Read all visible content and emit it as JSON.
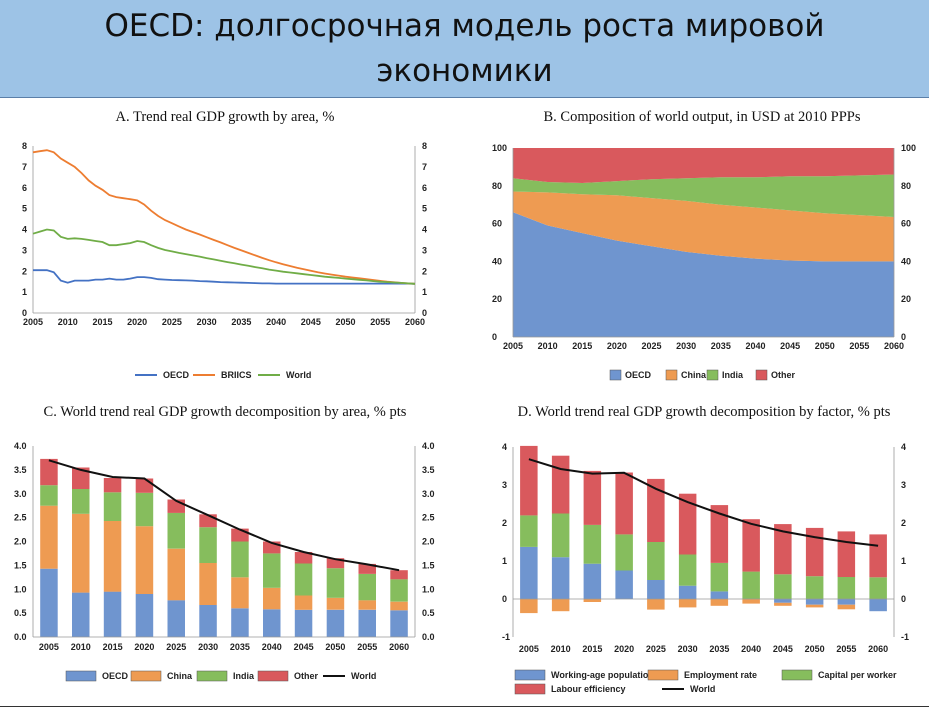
{
  "header": {
    "title": "OECD: долгосрочная модель роста мировой экономики"
  },
  "colors": {
    "banner": "#9dc3e6",
    "blue": "#4472c4",
    "orange": "#ed7d31",
    "green": "#70ad47",
    "bar_blue": "#6f95cf",
    "bar_orange": "#ee9b52",
    "bar_green": "#86bd5d",
    "bar_red": "#d9595d",
    "world_line": "#111111"
  },
  "chart_data": [
    {
      "id": "A",
      "type": "line",
      "title": "A. Trend real GDP growth by area, %",
      "x": [
        2005,
        2006,
        2007,
        2008,
        2009,
        2010,
        2011,
        2012,
        2013,
        2014,
        2015,
        2016,
        2017,
        2018,
        2019,
        2020,
        2021,
        2022,
        2023,
        2024,
        2025,
        2026,
        2027,
        2028,
        2029,
        2030,
        2031,
        2032,
        2033,
        2034,
        2035,
        2036,
        2037,
        2038,
        2039,
        2040,
        2041,
        2042,
        2043,
        2044,
        2045,
        2046,
        2047,
        2048,
        2049,
        2050,
        2051,
        2052,
        2053,
        2054,
        2055,
        2056,
        2057,
        2058,
        2059,
        2060
      ],
      "series": [
        {
          "name": "OECD",
          "color": "#4472c4",
          "values": [
            2.05,
            2.05,
            2.05,
            1.95,
            1.55,
            1.45,
            1.55,
            1.55,
            1.55,
            1.6,
            1.6,
            1.65,
            1.6,
            1.6,
            1.65,
            1.72,
            1.72,
            1.68,
            1.62,
            1.6,
            1.58,
            1.57,
            1.56,
            1.55,
            1.53,
            1.52,
            1.5,
            1.48,
            1.47,
            1.46,
            1.45,
            1.44,
            1.43,
            1.42,
            1.42,
            1.41,
            1.41,
            1.41,
            1.41,
            1.41,
            1.41,
            1.41,
            1.41,
            1.41,
            1.41,
            1.41,
            1.41,
            1.41,
            1.41,
            1.41,
            1.41,
            1.41,
            1.41,
            1.41,
            1.41,
            1.4
          ]
        },
        {
          "name": "BRIICS",
          "color": "#ed7d31",
          "values": [
            7.7,
            7.75,
            7.8,
            7.7,
            7.4,
            7.2,
            7.0,
            6.7,
            6.35,
            6.1,
            5.9,
            5.65,
            5.55,
            5.5,
            5.45,
            5.4,
            5.2,
            4.9,
            4.65,
            4.45,
            4.3,
            4.15,
            4.0,
            3.88,
            3.76,
            3.63,
            3.5,
            3.38,
            3.25,
            3.12,
            3.0,
            2.88,
            2.76,
            2.64,
            2.53,
            2.43,
            2.34,
            2.25,
            2.17,
            2.1,
            2.02,
            1.95,
            1.89,
            1.84,
            1.79,
            1.74,
            1.7,
            1.66,
            1.62,
            1.58,
            1.54,
            1.5,
            1.47,
            1.44,
            1.42,
            1.4
          ]
        },
        {
          "name": "World",
          "color": "#70ad47",
          "values": [
            3.8,
            3.9,
            4.0,
            3.95,
            3.65,
            3.55,
            3.58,
            3.55,
            3.5,
            3.45,
            3.4,
            3.25,
            3.25,
            3.3,
            3.35,
            3.45,
            3.4,
            3.25,
            3.12,
            3.02,
            2.95,
            2.88,
            2.82,
            2.76,
            2.7,
            2.63,
            2.57,
            2.5,
            2.44,
            2.38,
            2.32,
            2.26,
            2.2,
            2.14,
            2.08,
            2.03,
            1.98,
            1.94,
            1.9,
            1.86,
            1.82,
            1.78,
            1.74,
            1.71,
            1.68,
            1.65,
            1.62,
            1.59,
            1.56,
            1.53,
            1.5,
            1.48,
            1.46,
            1.44,
            1.42,
            1.4
          ]
        }
      ],
      "xticks": [
        2005,
        2010,
        2015,
        2020,
        2025,
        2030,
        2035,
        2040,
        2045,
        2050,
        2055,
        2060
      ],
      "yticks": [
        0,
        1,
        2,
        3,
        4,
        5,
        6,
        7,
        8
      ],
      "ylim": [
        0,
        8
      ],
      "grid": false,
      "legend": "bottom"
    },
    {
      "id": "B",
      "type": "area",
      "stacked": true,
      "title": "B. Composition of world output, in USD at 2010 PPPs",
      "x": [
        2005,
        2010,
        2015,
        2020,
        2025,
        2030,
        2035,
        2040,
        2045,
        2050,
        2055,
        2060
      ],
      "series": [
        {
          "name": "OECD",
          "color": "#6f95cf",
          "values": [
            66,
            59,
            55,
            51,
            48,
            45,
            43,
            41.5,
            40.5,
            40,
            40,
            40
          ]
        },
        {
          "name": "China",
          "color": "#ee9b52",
          "values": [
            11,
            17.5,
            20.5,
            24,
            25.5,
            27,
            27,
            27,
            26.5,
            25.5,
            24.5,
            23.5
          ]
        },
        {
          "name": "India",
          "color": "#86bd5d",
          "values": [
            7,
            5.5,
            6,
            7.5,
            10,
            12,
            14.5,
            16,
            18,
            19.5,
            21,
            22.5
          ]
        },
        {
          "name": "Other",
          "color": "#d9595d",
          "values": [
            16,
            18,
            18.5,
            17.5,
            16.5,
            16,
            15.5,
            15.5,
            15,
            15,
            14.5,
            14
          ]
        }
      ],
      "xticks": [
        2005,
        2010,
        2015,
        2020,
        2025,
        2030,
        2035,
        2040,
        2045,
        2050,
        2055,
        2060
      ],
      "yticks": [
        0,
        20,
        40,
        60,
        80,
        100
      ],
      "ylim": [
        0,
        100
      ],
      "grid": false,
      "legend": "bottom"
    },
    {
      "id": "C",
      "type": "bar",
      "stacked": true,
      "title": "C. World trend real GDP growth decomposition by area, % pts",
      "categories": [
        "2005",
        "2010",
        "2015",
        "2020",
        "2025",
        "2030",
        "2035",
        "2040",
        "2045",
        "2050",
        "2055",
        "2060"
      ],
      "series": [
        {
          "name": "OECD",
          "color": "#6f95cf",
          "values": [
            1.43,
            0.93,
            0.95,
            0.9,
            0.77,
            0.67,
            0.6,
            0.58,
            0.57,
            0.57,
            0.57,
            0.56
          ]
        },
        {
          "name": "China",
          "color": "#ee9b52",
          "values": [
            1.32,
            1.65,
            1.48,
            1.42,
            1.08,
            0.88,
            0.65,
            0.45,
            0.3,
            0.25,
            0.2,
            0.18
          ]
        },
        {
          "name": "India",
          "color": "#86bd5d",
          "values": [
            0.43,
            0.52,
            0.6,
            0.7,
            0.75,
            0.75,
            0.75,
            0.72,
            0.67,
            0.62,
            0.55,
            0.47
          ]
        },
        {
          "name": "Other",
          "color": "#d9595d",
          "values": [
            0.55,
            0.45,
            0.3,
            0.3,
            0.28,
            0.27,
            0.27,
            0.25,
            0.24,
            0.21,
            0.21,
            0.19
          ]
        }
      ],
      "line": {
        "name": "World",
        "color": "#111111",
        "values": [
          3.7,
          3.5,
          3.35,
          3.32,
          2.85,
          2.55,
          2.25,
          1.97,
          1.78,
          1.63,
          1.52,
          1.4
        ]
      },
      "yticks": [
        "0.0",
        "0.5",
        "1.0",
        "1.5",
        "2.0",
        "2.5",
        "3.0",
        "3.5",
        "4.0"
      ],
      "ylim": [
        0,
        4
      ],
      "grid": false,
      "legend": "bottom"
    },
    {
      "id": "D",
      "type": "bar",
      "stacked": true,
      "title": "D. World trend real GDP growth decomposition by factor, % pts",
      "categories": [
        "2005",
        "2010",
        "2015",
        "2020",
        "2025",
        "2030",
        "2035",
        "2040",
        "2045",
        "2050",
        "2055",
        "2060"
      ],
      "series": [
        {
          "name": "Working-age population",
          "color": "#6f95cf",
          "values": [
            1.37,
            1.1,
            0.93,
            0.75,
            0.5,
            0.35,
            0.2,
            0.0,
            -0.1,
            -0.15,
            -0.15,
            -0.32
          ]
        },
        {
          "name": "Employment rate",
          "color": "#ee9b52",
          "values": [
            -0.37,
            -0.32,
            -0.08,
            0.0,
            -0.28,
            -0.22,
            -0.18,
            -0.12,
            -0.08,
            -0.07,
            -0.12,
            0.0
          ]
        },
        {
          "name": "Capital per worker",
          "color": "#86bd5d",
          "values": [
            0.83,
            1.15,
            1.02,
            0.95,
            1.0,
            0.82,
            0.75,
            0.72,
            0.65,
            0.6,
            0.58,
            0.57
          ]
        },
        {
          "name": "Labour efficiency",
          "color": "#d9595d",
          "values": [
            1.83,
            1.52,
            1.42,
            1.63,
            1.66,
            1.6,
            1.52,
            1.38,
            1.32,
            1.27,
            1.2,
            1.13
          ]
        }
      ],
      "line": {
        "name": "World",
        "color": "#111111",
        "values": [
          3.68,
          3.42,
          3.3,
          3.32,
          2.9,
          2.55,
          2.25,
          1.98,
          1.78,
          1.63,
          1.5,
          1.4
        ]
      },
      "yticks": [
        "-1",
        "0",
        "1",
        "2",
        "3",
        "4"
      ],
      "ylim": [
        -1,
        4
      ],
      "grid": false,
      "legend": "bottom"
    }
  ]
}
